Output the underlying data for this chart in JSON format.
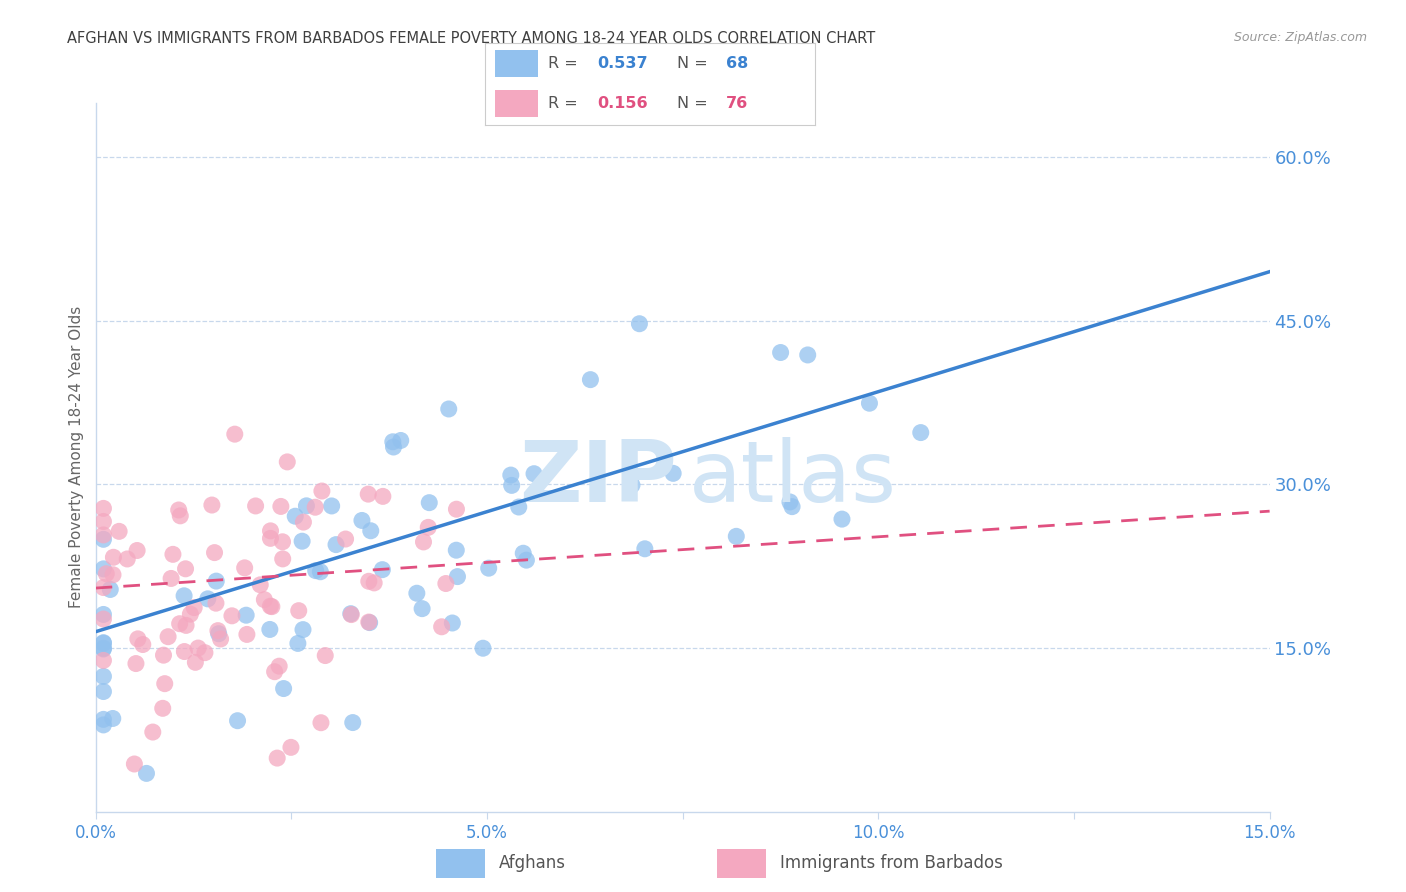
{
  "title": "AFGHAN VS IMMIGRANTS FROM BARBADOS FEMALE POVERTY AMONG 18-24 YEAR OLDS CORRELATION CHART",
  "source": "Source: ZipAtlas.com",
  "ylabel": "Female Poverty Among 18-24 Year Olds",
  "xlim": [
    0.0,
    0.15
  ],
  "ylim": [
    0.0,
    0.65
  ],
  "x_ticks": [
    0.0,
    0.025,
    0.05,
    0.075,
    0.1,
    0.125,
    0.15
  ],
  "x_tick_labels": [
    "0.0%",
    "",
    "5.0%",
    "",
    "10.0%",
    "",
    "15.0%"
  ],
  "y_ticks_right": [
    0.15,
    0.3,
    0.45,
    0.6
  ],
  "y_tick_labels_right": [
    "15.0%",
    "30.0%",
    "45.0%",
    "60.0%"
  ],
  "afghans_R": 0.537,
  "afghans_N": 68,
  "barbados_R": 0.156,
  "barbados_N": 76,
  "afghans_color": "#92C1EE",
  "barbados_color": "#F4A8C0",
  "afghans_line_color": "#3B82D0",
  "barbados_line_color": "#E05080",
  "watermark_color": "#D0E4F5",
  "background_color": "#FFFFFF",
  "grid_color": "#C8D8EC",
  "title_color": "#404040",
  "axis_label_color": "#4A90D9",
  "source_color": "#999999",
  "ylabel_color": "#666666",
  "legend_border_color": "#CCCCCC"
}
